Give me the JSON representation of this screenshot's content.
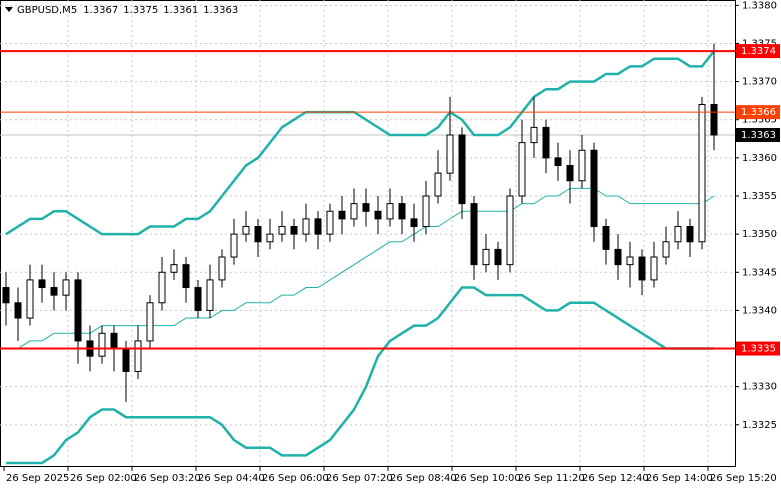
{
  "chart_data": {
    "type": "candlestick",
    "title": "GBPUSD,M5",
    "open": [
      1.3343,
      1.3341,
      1.3339,
      1.3344,
      1.3343,
      1.3342,
      1.3344,
      1.3336,
      1.3334,
      1.3337,
      1.3335,
      1.3332,
      1.3336,
      1.3341,
      1.3345,
      1.3346,
      1.3343,
      1.334,
      1.3344,
      1.3347,
      1.335,
      1.3351,
      1.3349,
      1.335,
      1.3351,
      1.335,
      1.3352,
      1.335,
      1.3353,
      1.3352,
      1.3354,
      1.3353,
      1.3352,
      1.3354,
      1.3352,
      1.3351,
      1.3355,
      1.3358,
      1.3363,
      1.3354,
      1.3346,
      1.3348,
      1.3346,
      1.3355,
      1.3362,
      1.3364,
      1.336,
      1.3359,
      1.3357,
      1.3361,
      1.3351,
      1.3348,
      1.3346,
      1.3347,
      1.3344,
      1.3347,
      1.3349,
      1.3351,
      1.3349,
      1.3367
    ],
    "high": [
      1.3345,
      1.3343,
      1.3346,
      1.3346,
      1.3345,
      1.3345,
      1.3345,
      1.3338,
      1.3338,
      1.3338,
      1.3336,
      1.3338,
      1.3342,
      1.3347,
      1.3348,
      1.3347,
      1.3344,
      1.3346,
      1.3348,
      1.3352,
      1.3353,
      1.3352,
      1.3352,
      1.3353,
      1.3352,
      1.3354,
      1.3353,
      1.3354,
      1.3355,
      1.3356,
      1.3356,
      1.3355,
      1.3356,
      1.3355,
      1.3354,
      1.3357,
      1.3361,
      1.3368,
      1.3364,
      1.3355,
      1.335,
      1.3349,
      1.3356,
      1.3365,
      1.3368,
      1.3365,
      1.3362,
      1.3361,
      1.3363,
      1.3362,
      1.3352,
      1.335,
      1.3349,
      1.3348,
      1.3349,
      1.3351,
      1.3353,
      1.3352,
      1.3368,
      1.3375
    ],
    "low": [
      1.3338,
      1.3336,
      1.3338,
      1.3341,
      1.334,
      1.334,
      1.3333,
      1.3332,
      1.3333,
      1.3332,
      1.3328,
      1.3331,
      1.3335,
      1.334,
      1.3344,
      1.3341,
      1.3339,
      1.3339,
      1.3343,
      1.3346,
      1.3349,
      1.3347,
      1.3348,
      1.3349,
      1.3348,
      1.3349,
      1.3348,
      1.3349,
      1.335,
      1.3351,
      1.3351,
      1.335,
      1.3351,
      1.335,
      1.3349,
      1.335,
      1.3354,
      1.3357,
      1.3352,
      1.3344,
      1.3345,
      1.3344,
      1.3345,
      1.3354,
      1.336,
      1.3358,
      1.3357,
      1.3354,
      1.3356,
      1.3349,
      1.3346,
      1.3344,
      1.3343,
      1.3342,
      1.3343,
      1.3346,
      1.3348,
      1.3347,
      1.3348,
      1.3361
    ],
    "close": [
      1.3341,
      1.3339,
      1.3344,
      1.3343,
      1.3342,
      1.3344,
      1.3336,
      1.3334,
      1.3337,
      1.3335,
      1.3332,
      1.3336,
      1.3341,
      1.3345,
      1.3346,
      1.3343,
      1.334,
      1.3344,
      1.3347,
      1.335,
      1.3351,
      1.3349,
      1.335,
      1.3351,
      1.335,
      1.3352,
      1.335,
      1.3353,
      1.3352,
      1.3354,
      1.3353,
      1.3352,
      1.3354,
      1.3352,
      1.3351,
      1.3355,
      1.3358,
      1.3363,
      1.3354,
      1.3346,
      1.3348,
      1.3346,
      1.3355,
      1.3362,
      1.3364,
      1.336,
      1.3359,
      1.3357,
      1.3361,
      1.3351,
      1.3348,
      1.3346,
      1.3347,
      1.3344,
      1.3347,
      1.3349,
      1.3351,
      1.3349,
      1.3367,
      1.3363
    ],
    "up_color": "#ffffff",
    "down_color": "#000000",
    "bands": [
      {
        "color": "#20b2aa",
        "width": 2.5,
        "values": [
          1.335,
          1.3351,
          1.3352,
          1.3352,
          1.3353,
          1.3353,
          1.3352,
          1.3351,
          1.335,
          1.335,
          1.335,
          1.335,
          1.3351,
          1.3351,
          1.3351,
          1.3352,
          1.3352,
          1.3353,
          1.3355,
          1.3357,
          1.3359,
          1.336,
          1.3362,
          1.3364,
          1.3365,
          1.3366,
          1.3366,
          1.3366,
          1.3366,
          1.3366,
          1.3365,
          1.3364,
          1.3363,
          1.3363,
          1.3363,
          1.3363,
          1.3364,
          1.3366,
          1.3365,
          1.3363,
          1.3363,
          1.3363,
          1.3364,
          1.3366,
          1.3368,
          1.3369,
          1.3369,
          1.337,
          1.337,
          1.337,
          1.3371,
          1.3371,
          1.3372,
          1.3372,
          1.3373,
          1.3373,
          1.3373,
          1.3372,
          1.3372,
          1.3374
        ]
      },
      {
        "color": "#20b2aa",
        "width": 1,
        "values": [
          1.3335,
          1.3335,
          1.3336,
          1.3336,
          1.3337,
          1.3337,
          1.3337,
          1.3337,
          1.3338,
          1.3338,
          1.3338,
          1.3338,
          1.3338,
          1.3338,
          1.3338,
          1.3339,
          1.3339,
          1.3339,
          1.334,
          1.334,
          1.3341,
          1.3341,
          1.3341,
          1.3342,
          1.3342,
          1.3343,
          1.3343,
          1.3344,
          1.3345,
          1.3346,
          1.3347,
          1.3348,
          1.3349,
          1.3349,
          1.335,
          1.3351,
          1.3351,
          1.3352,
          1.3353,
          1.3353,
          1.3353,
          1.3353,
          1.3353,
          1.3354,
          1.3354,
          1.3355,
          1.3355,
          1.3356,
          1.3356,
          1.3356,
          1.3355,
          1.3355,
          1.3354,
          1.3354,
          1.3354,
          1.3354,
          1.3354,
          1.3354,
          1.3354,
          1.3355
        ]
      },
      {
        "color": "#20b2aa",
        "width": 2.5,
        "values": [
          1.332,
          1.332,
          1.332,
          1.332,
          1.3321,
          1.3323,
          1.3324,
          1.3326,
          1.3327,
          1.3327,
          1.3326,
          1.3326,
          1.3326,
          1.3326,
          1.3326,
          1.3326,
          1.3326,
          1.3326,
          1.3325,
          1.3323,
          1.3322,
          1.3322,
          1.3322,
          1.3321,
          1.3321,
          1.3321,
          1.3322,
          1.3323,
          1.3325,
          1.3327,
          1.333,
          1.3334,
          1.3336,
          1.3337,
          1.3338,
          1.3338,
          1.3339,
          1.3341,
          1.3343,
          1.3343,
          1.3342,
          1.3342,
          1.3342,
          1.3342,
          1.3341,
          1.334,
          1.334,
          1.3341,
          1.3341,
          1.3341,
          1.334,
          1.3339,
          1.3338,
          1.3337,
          1.3336,
          1.3335,
          1.3335,
          1.3335,
          1.3335,
          1.3335
        ]
      }
    ],
    "levels": [
      {
        "value": 1.3374,
        "color": "#ff0000"
      },
      {
        "value": 1.3366,
        "color": "#ff4000"
      },
      {
        "value": 1.3335,
        "color": "#ff0000"
      }
    ],
    "current_price_color": "#000000",
    "ylim": [
      1.33196,
      1.33807
    ],
    "yticks": [
      {
        "value": 1.338,
        "label": "1.3380"
      },
      1.3375,
      {
        "value": 1.337,
        "label": "1.3370"
      },
      1.3365,
      {
        "value": 1.336,
        "label": "1.3360"
      },
      1.3355,
      {
        "value": 1.335,
        "label": "1.3350"
      },
      1.3345,
      {
        "value": 1.334,
        "label": "1.3340"
      },
      1.3335,
      {
        "value": 1.333,
        "label": "1.3330"
      },
      1.3325
    ],
    "xticks": [
      "26 Sep 2025",
      "26 Sep 02:00",
      "26 Sep 03:20",
      "26 Sep 04:40",
      "26 Sep 06:00",
      "26 Sep 07:20",
      "26 Sep 08:40",
      "26 Sep 10:00",
      "26 Sep 11:20",
      "26 Sep 12:40",
      "26 Sep 14:00",
      "26 Sep 15:20"
    ],
    "grid": true
  }
}
